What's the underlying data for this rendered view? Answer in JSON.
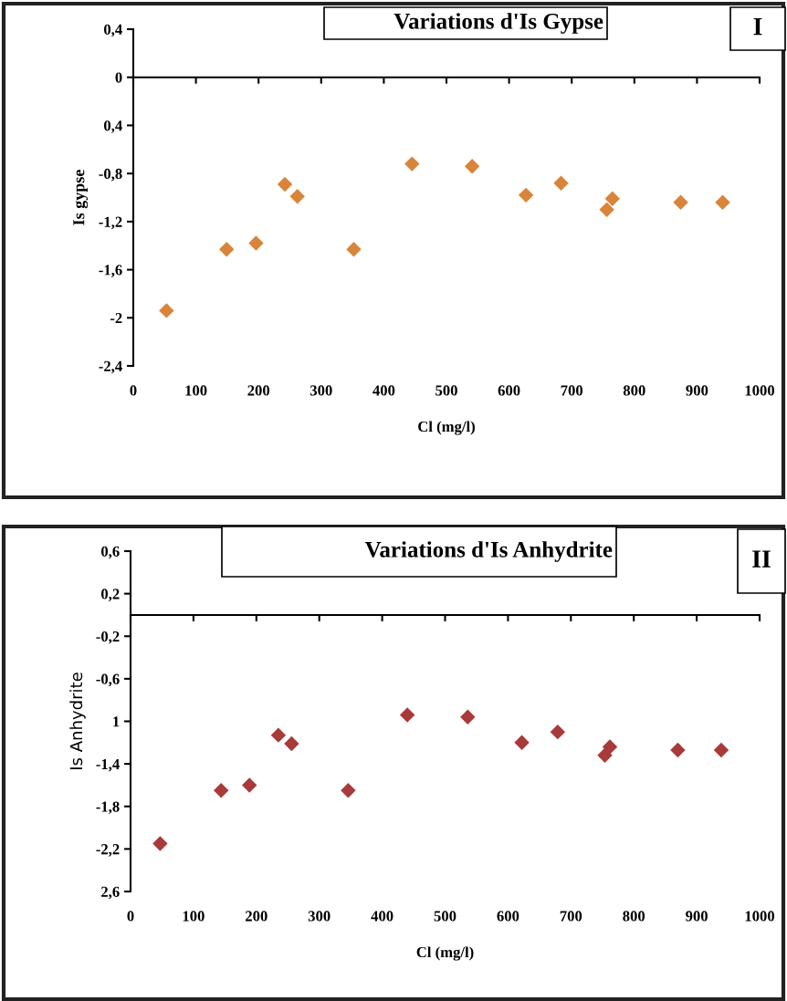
{
  "chart_data": [
    {
      "type": "scatter",
      "title": "Variations d'Is Gypse",
      "xlabel": "Cl (mg/l)",
      "ylabel": "Is gypse",
      "annotations": [
        "I"
      ],
      "marker": "diamond",
      "xlim": [
        0,
        1000
      ],
      "xticks": [
        0,
        100,
        200,
        300,
        400,
        500,
        600,
        700,
        800,
        900,
        1000
      ],
      "ylim": [
        -2.4,
        0.4
      ],
      "yticks": [
        {
          "value": 0.4,
          "label": "0,4"
        },
        0,
        {
          "value": -0.4,
          "label": "0,4"
        },
        {
          "value": -0.8,
          "label": "-0,8"
        },
        {
          "value": -1.2,
          "label": "-1,2"
        },
        {
          "value": -1.6,
          "label": "-1,6"
        },
        -2,
        {
          "value": -2.4,
          "label": "-2,4"
        }
      ],
      "series": [
        {
          "color": "#d9843b",
          "x": [
            53,
            149,
            196,
            242,
            262,
            352,
            445,
            541,
            627,
            683,
            756,
            765,
            874,
            941
          ],
          "values": [
            -1.94,
            -1.43,
            -1.38,
            -0.89,
            -0.99,
            -1.43,
            -0.72,
            -0.74,
            -0.98,
            -0.88,
            -1.1,
            -1.01,
            -1.04,
            -1.04
          ]
        }
      ]
    },
    {
      "type": "scatter",
      "title": "Variations d'Is Anhydrite",
      "xlabel": "Cl (mg/l)",
      "ylabel": "Is Anhydrite",
      "annotations": [
        "II"
      ],
      "marker": "diamond",
      "xlim": [
        0,
        1000
      ],
      "xticks": [
        0,
        100,
        200,
        300,
        400,
        500,
        600,
        700,
        800,
        900,
        1000
      ],
      "ylim": [
        -2.6,
        0.6
      ],
      "yticks": [
        {
          "value": 0.6,
          "label": "0,6"
        },
        {
          "value": 0.2,
          "label": "0,2"
        },
        {
          "value": -0.2,
          "label": "-0,2"
        },
        {
          "value": -0.6,
          "label": "-0,6"
        },
        {
          "value": -1.0,
          "label": "1"
        },
        {
          "value": -1.4,
          "label": "-1,4"
        },
        {
          "value": -1.8,
          "label": "-1,8"
        },
        {
          "value": -2.2,
          "label": "-2,2"
        },
        {
          "value": -2.6,
          "label": "2,6"
        }
      ],
      "series": [
        {
          "color": "#a83a3a",
          "x": [
            47,
            144,
            189,
            235,
            256,
            346,
            440,
            536,
            622,
            679,
            754,
            762,
            870,
            939
          ],
          "values": [
            -2.15,
            -1.65,
            -1.6,
            -1.13,
            -1.21,
            -1.65,
            -0.94,
            -0.96,
            -1.2,
            -1.1,
            -1.32,
            -1.24,
            -1.27,
            -1.27
          ]
        }
      ]
    }
  ]
}
